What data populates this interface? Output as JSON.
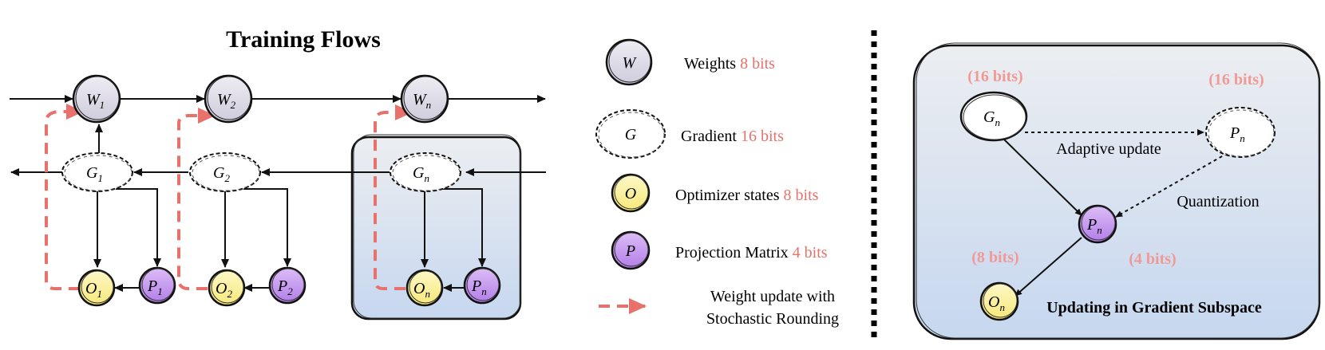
{
  "title": "Training Flows",
  "colors": {
    "accent_red": "#e8716b",
    "bits_pink": "#f09a96",
    "weight_fill": "#e1dfe9",
    "optimizer_fill": "#fbf29b",
    "projection_fill": "#c79cf0",
    "panel_top": "#e9eaee",
    "panel_bottom": "#c8d8ee"
  },
  "flow_nodes": {
    "w1": {
      "sym": "W",
      "sub": "1"
    },
    "w2": {
      "sym": "W",
      "sub": "2"
    },
    "wn": {
      "sym": "W",
      "sub": "n"
    },
    "g1": {
      "sym": "G",
      "sub": "1"
    },
    "g2": {
      "sym": "G",
      "sub": "2"
    },
    "gn": {
      "sym": "G",
      "sub": "n"
    },
    "o1": {
      "sym": "O",
      "sub": "1"
    },
    "o2": {
      "sym": "O",
      "sub": "2"
    },
    "on": {
      "sym": "O",
      "sub": "n"
    },
    "p1": {
      "sym": "P",
      "sub": "1"
    },
    "p2": {
      "sym": "P",
      "sub": "2"
    },
    "pn": {
      "sym": "P",
      "sub": "n"
    }
  },
  "legend": {
    "weights": {
      "symbol": "W",
      "label": "Weights",
      "bits": "8 bits"
    },
    "gradient": {
      "symbol": "G",
      "label": "Gradient",
      "bits": "16 bits"
    },
    "optimizer": {
      "symbol": "O",
      "label": "Optimizer states",
      "bits": "8 bits"
    },
    "projection": {
      "symbol": "P",
      "label": "Projection Matrix",
      "bits": "4 bits"
    },
    "update_line1": "Weight update with",
    "update_line2": "Stochastic Rounding"
  },
  "subspace": {
    "gn": {
      "sym": "G",
      "sub": "n"
    },
    "pn_top": {
      "sym": "P",
      "sub": "n"
    },
    "pn_mid": {
      "sym": "P",
      "sub": "n"
    },
    "on": {
      "sym": "O",
      "sub": "n"
    },
    "bits_g": "(16 bits)",
    "bits_p": "(16 bits)",
    "bits_o": "(8 bits)",
    "bits_pq": "(4 bits)",
    "adaptive_label": "Adaptive update",
    "quant_label": "Quantization",
    "caption": "Updating in Gradient Subspace"
  }
}
